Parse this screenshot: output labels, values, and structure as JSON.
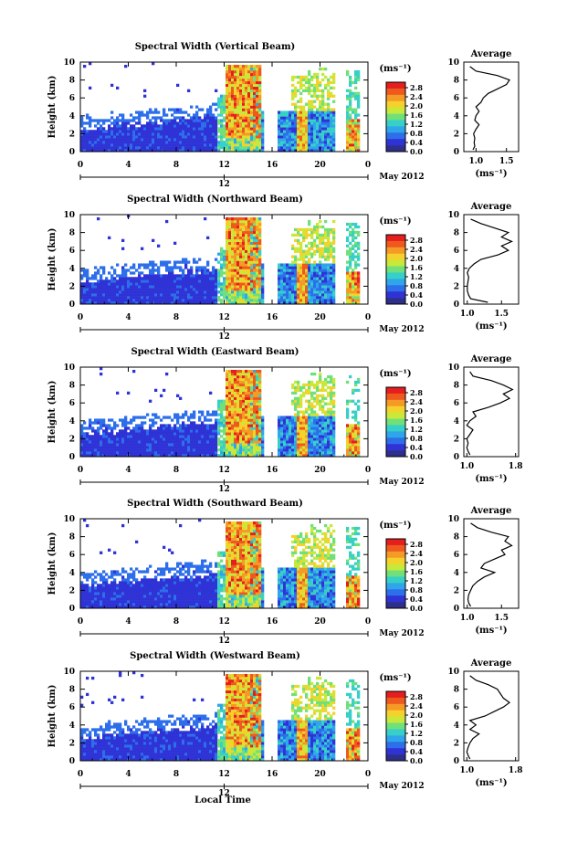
{
  "figure": {
    "date_label": "May 2012",
    "x_axis_title": "Local Time",
    "day_label": "12"
  },
  "colorbar": {
    "unit_label": "(ms⁻¹)",
    "tick_labels": [
      "2.8",
      "2.4",
      "2.0",
      "1.6",
      "1.2",
      "0.8",
      "0.4",
      "0.0"
    ],
    "colors": [
      "#2e2e8c",
      "#2f33d6",
      "#2d6fea",
      "#2fa6ea",
      "#36d0c8",
      "#6fe07a",
      "#c8e83a",
      "#f4d22b",
      "#f59a26",
      "#ee5a1e",
      "#e61e1e"
    ]
  },
  "chart_data": [
    {
      "type": "heatmap",
      "title": "Spectral Width (Vertical Beam)",
      "ylabel": "Height (km)",
      "xticks": [
        "0",
        "4",
        "8",
        "12",
        "16",
        "20",
        "0"
      ],
      "yticks": [
        "0",
        "2",
        "4",
        "6",
        "8",
        "10"
      ],
      "xlim": [
        0,
        24
      ],
      "ylim": [
        0,
        10
      ],
      "avg": {
        "title": "Average",
        "xlabel": "(ms⁻¹)",
        "xticks": [
          "1.0",
          "1.5"
        ],
        "xlim": [
          0.8,
          1.7
        ],
        "heights": [
          0.2,
          0.6,
          1.0,
          1.5,
          2.0,
          2.5,
          3.0,
          3.5,
          4.0,
          4.5,
          5.0,
          5.5,
          6.0,
          6.5,
          7.0,
          7.5,
          8.0,
          8.5,
          9.0,
          9.5
        ],
        "values": [
          0.95,
          0.98,
          0.97,
          0.98,
          0.96,
          1.0,
          1.05,
          0.98,
          1.0,
          1.05,
          1.0,
          1.08,
          1.12,
          1.2,
          1.35,
          1.5,
          1.55,
          1.35,
          1.0,
          0.9
        ]
      }
    },
    {
      "type": "heatmap",
      "title": "Spectral Width (Northward Beam)",
      "ylabel": "Height (km)",
      "xticks": [
        "0",
        "4",
        "8",
        "12",
        "16",
        "20",
        "0"
      ],
      "yticks": [
        "0",
        "2",
        "4",
        "6",
        "8",
        "10"
      ],
      "xlim": [
        0,
        24
      ],
      "ylim": [
        0,
        10
      ],
      "avg": {
        "title": "Average",
        "xlabel": "(ms⁻¹)",
        "xticks": [
          "1.0",
          "1.5"
        ],
        "xlim": [
          0.95,
          1.75
        ],
        "heights": [
          0.2,
          0.6,
          1.0,
          1.5,
          2.0,
          2.5,
          3.0,
          3.5,
          4.0,
          4.5,
          5.0,
          5.5,
          6.0,
          6.5,
          7.0,
          7.5,
          8.0,
          8.5,
          9.0,
          9.5
        ],
        "values": [
          1.3,
          1.05,
          1.02,
          1.0,
          1.0,
          1.01,
          1.02,
          1.0,
          1.03,
          1.1,
          1.2,
          1.45,
          1.6,
          1.5,
          1.65,
          1.5,
          1.6,
          1.4,
          1.2,
          1.05
        ]
      }
    },
    {
      "type": "heatmap",
      "title": "Spectral Width (Eastward Beam)",
      "ylabel": "Height (km)",
      "xticks": [
        "0",
        "4",
        "8",
        "12",
        "16",
        "20",
        "0"
      ],
      "yticks": [
        "0",
        "2",
        "4",
        "6",
        "8",
        "10"
      ],
      "xlim": [
        0,
        24
      ],
      "ylim": [
        0,
        10
      ],
      "avg": {
        "title": "Average",
        "xlabel": "(ms⁻¹)",
        "xticks": [
          "1.0",
          "1.8"
        ],
        "xlim": [
          0.95,
          1.85
        ],
        "heights": [
          0.2,
          0.6,
          1.0,
          1.5,
          2.0,
          2.5,
          3.0,
          3.5,
          4.0,
          4.5,
          5.0,
          5.5,
          6.0,
          6.5,
          7.0,
          7.5,
          8.0,
          8.5,
          9.0,
          9.5
        ],
        "values": [
          1.05,
          1.02,
          1.0,
          1.02,
          1.0,
          1.05,
          1.1,
          1.0,
          1.05,
          1.15,
          1.1,
          1.35,
          1.55,
          1.7,
          1.6,
          1.75,
          1.6,
          1.4,
          1.1,
          1.05
        ]
      }
    },
    {
      "type": "heatmap",
      "title": "Spectral Width (Southward Beam)",
      "ylabel": "Height (km)",
      "xticks": [
        "0",
        "4",
        "8",
        "12",
        "16",
        "20",
        "0"
      ],
      "yticks": [
        "0",
        "2",
        "4",
        "6",
        "8",
        "10"
      ],
      "xlim": [
        0,
        24
      ],
      "ylim": [
        0,
        10
      ],
      "avg": {
        "title": "Average",
        "xlabel": "(ms⁻¹)",
        "xticks": [
          "1.0",
          "1.5"
        ],
        "xlim": [
          0.95,
          1.75
        ],
        "heights": [
          0.2,
          0.6,
          1.0,
          1.5,
          2.0,
          2.5,
          3.0,
          3.5,
          4.0,
          4.5,
          5.0,
          5.5,
          6.0,
          6.5,
          7.0,
          7.5,
          8.0,
          8.5,
          9.0,
          9.5
        ],
        "values": [
          1.05,
          1.02,
          1.01,
          1.02,
          1.05,
          1.08,
          1.15,
          1.25,
          1.4,
          1.2,
          1.25,
          1.4,
          1.55,
          1.5,
          1.65,
          1.55,
          1.6,
          1.35,
          1.15,
          1.05
        ]
      }
    },
    {
      "type": "heatmap",
      "title": "Spectral Width (Westward Beam)",
      "ylabel": "Height (km)",
      "xticks": [
        "0",
        "4",
        "8",
        "12",
        "16",
        "20",
        "0"
      ],
      "yticks": [
        "0",
        "2",
        "4",
        "6",
        "8",
        "10"
      ],
      "xlim": [
        0,
        24
      ],
      "ylim": [
        0,
        10
      ],
      "avg": {
        "title": "Average",
        "xlabel": "(ms⁻¹)",
        "xticks": [
          "1.0",
          "1.8"
        ],
        "xlim": [
          0.95,
          1.85
        ],
        "heights": [
          0.2,
          0.6,
          1.0,
          1.5,
          2.0,
          2.5,
          3.0,
          3.5,
          4.0,
          4.5,
          5.0,
          5.5,
          6.0,
          6.5,
          7.0,
          7.5,
          8.0,
          8.5,
          9.0,
          9.5
        ],
        "values": [
          1.05,
          1.02,
          1.0,
          1.02,
          1.05,
          1.1,
          1.2,
          1.05,
          1.15,
          1.05,
          1.3,
          1.45,
          1.6,
          1.7,
          1.6,
          1.55,
          1.5,
          1.35,
          1.15,
          1.05
        ]
      }
    }
  ]
}
